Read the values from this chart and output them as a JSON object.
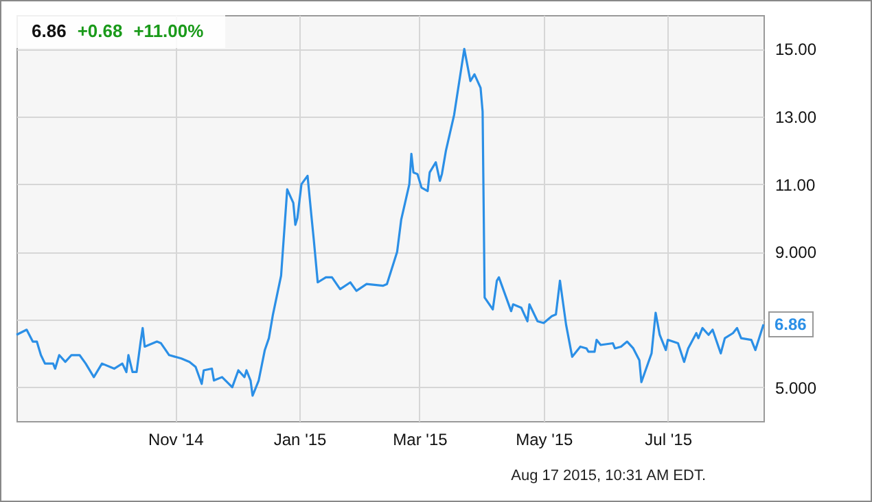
{
  "chart_data": {
    "type": "line",
    "title": "6.86",
    "annotations": [
      "+0.68",
      "+11.00%",
      "Aug 17 2015, 10:31 AM EDT.",
      {
        "text": "6.86",
        "x": "2015-08-17",
        "y": 6.86
      }
    ],
    "x": [
      "2014-08-15",
      "2014-08-20",
      "2014-08-23",
      "2014-08-25",
      "2014-08-27",
      "2014-08-29",
      "2014-09-02",
      "2014-09-03",
      "2014-09-05",
      "2014-09-08",
      "2014-09-11",
      "2014-09-15",
      "2014-09-18",
      "2014-09-22",
      "2014-09-26",
      "2014-10-02",
      "2014-10-06",
      "2014-10-08",
      "2014-10-09",
      "2014-10-11",
      "2014-10-13",
      "2014-10-15",
      "2014-10-16",
      "2014-10-17",
      "2014-10-23",
      "2014-10-25",
      "2014-10-29",
      "2014-11-04",
      "2014-11-08",
      "2014-11-11",
      "2014-11-14",
      "2014-11-15",
      "2014-11-19",
      "2014-11-20",
      "2014-11-24",
      "2014-11-29",
      "2014-12-02",
      "2014-12-05",
      "2014-12-06",
      "2014-12-08",
      "2014-12-09",
      "2014-12-12",
      "2014-12-15",
      "2014-12-17",
      "2014-12-19",
      "2014-12-23",
      "2014-12-26",
      "2014-12-29",
      "2014-12-30",
      "2014-12-31",
      "2015-01-02",
      "2015-01-05",
      "2015-01-07",
      "2015-01-08",
      "2015-01-10",
      "2015-01-14",
      "2015-01-17",
      "2015-01-21",
      "2015-01-26",
      "2015-01-29",
      "2015-02-03",
      "2015-02-11",
      "2015-02-13",
      "2015-02-18",
      "2015-02-20",
      "2015-02-24",
      "2015-02-25",
      "2015-02-26",
      "2015-02-28",
      "2015-03-02",
      "2015-03-05",
      "2015-03-06",
      "2015-03-09",
      "2015-03-11",
      "2015-03-12",
      "2015-03-14",
      "2015-03-18",
      "2015-03-23",
      "2015-03-26",
      "2015-03-28",
      "2015-03-31",
      "2015-04-01",
      "2015-04-02",
      "2015-04-06",
      "2015-04-08",
      "2015-04-09",
      "2015-04-15",
      "2015-04-16",
      "2015-04-20",
      "2015-04-23",
      "2015-04-24",
      "2015-04-28",
      "2015-05-01",
      "2015-05-05",
      "2015-05-07",
      "2015-05-09",
      "2015-05-12",
      "2015-05-15",
      "2015-05-19",
      "2015-05-22",
      "2015-05-23",
      "2015-05-26",
      "2015-05-27",
      "2015-05-29",
      "2015-06-04",
      "2015-06-05",
      "2015-06-08",
      "2015-06-11",
      "2015-06-14",
      "2015-06-17",
      "2015-06-18",
      "2015-06-23",
      "2015-06-25",
      "2015-06-27",
      "2015-06-30",
      "2015-07-01",
      "2015-07-06",
      "2015-07-09",
      "2015-07-11",
      "2015-07-15",
      "2015-07-16",
      "2015-07-18",
      "2015-07-21",
      "2015-07-23",
      "2015-07-27",
      "2015-07-29",
      "2015-08-02",
      "2015-08-04",
      "2015-08-06",
      "2015-08-11",
      "2015-08-13",
      "2015-08-17"
    ],
    "series": [
      {
        "color": "#2b8fe6",
        "values": [
          6.55,
          6.7,
          6.35,
          6.35,
          5.95,
          5.7,
          5.7,
          5.55,
          5.95,
          5.75,
          5.95,
          5.95,
          5.7,
          5.3,
          5.7,
          5.55,
          5.7,
          5.45,
          5.95,
          5.45,
          5.45,
          6.35,
          6.75,
          6.2,
          6.35,
          6.3,
          5.95,
          5.85,
          5.75,
          5.6,
          5.1,
          5.5,
          5.55,
          5.2,
          5.3,
          5.0,
          5.5,
          5.3,
          5.5,
          5.2,
          4.75,
          5.2,
          6.1,
          6.45,
          7.15,
          8.3,
          10.85,
          10.45,
          9.8,
          10.0,
          11.0,
          11.25,
          10.0,
          9.4,
          8.1,
          8.25,
          8.25,
          7.9,
          8.1,
          7.85,
          8.05,
          8.0,
          8.05,
          9.0,
          9.95,
          11.0,
          11.9,
          11.35,
          11.3,
          10.9,
          10.8,
          11.35,
          11.65,
          11.1,
          11.3,
          12.0,
          13.05,
          15.0,
          14.05,
          14.25,
          13.85,
          13.15,
          7.65,
          7.3,
          8.15,
          8.25,
          7.25,
          7.45,
          7.35,
          6.95,
          7.45,
          6.95,
          6.9,
          7.1,
          7.15,
          8.15,
          6.85,
          5.9,
          6.2,
          6.15,
          6.05,
          6.05,
          6.4,
          6.25,
          6.3,
          6.15,
          6.2,
          6.35,
          6.15,
          5.8,
          5.15,
          6.0,
          7.2,
          6.55,
          6.1,
          6.4,
          6.3,
          5.75,
          6.15,
          6.6,
          6.45,
          6.75,
          6.55,
          6.7,
          6.0,
          6.45,
          6.6,
          6.75,
          6.45,
          6.4,
          6.1,
          6.86
        ]
      }
    ],
    "xlim": [
      "2014-08-15",
      "2015-08-17"
    ],
    "xticks": [
      {
        "value": "2014-11-01",
        "label": "Nov '14"
      },
      {
        "value": "2015-01-01",
        "label": "Jan '15"
      },
      {
        "value": "2015-03-01",
        "label": "Mar '15"
      },
      {
        "value": "2015-05-01",
        "label": "May '15"
      },
      {
        "value": "2015-07-01",
        "label": "Jul '15"
      }
    ],
    "ylim": [
      4,
      16
    ],
    "yticks": [
      {
        "value": 5,
        "label": "5.000"
      },
      {
        "value": 7,
        "label": null
      },
      {
        "value": 9,
        "label": "9.000"
      },
      {
        "value": 11,
        "label": "11.00"
      },
      {
        "value": 13,
        "label": "13.00"
      },
      {
        "value": 15,
        "label": "15.00"
      }
    ],
    "grid": true
  }
}
